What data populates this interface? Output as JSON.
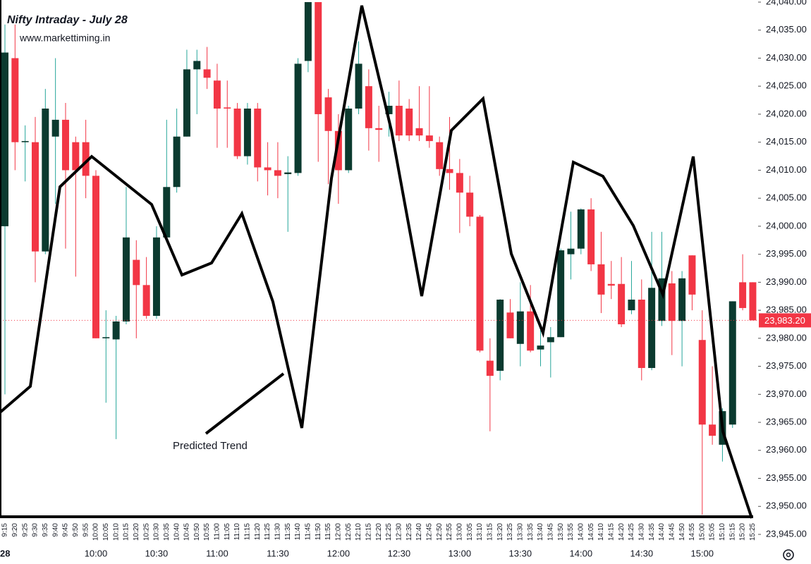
{
  "chart_data": {
    "type": "candlestick",
    "title": "Nifty Intraday - July 28",
    "subtitle": "www.markettiming.in",
    "annotation": "Predicted Trend",
    "date_label": "28",
    "categories": [
      "9:15",
      "9:20",
      "9:25",
      "9:30",
      "9:35",
      "9:40",
      "9:45",
      "9:50",
      "9:55",
      "10:00",
      "10:05",
      "10:10",
      "10:15",
      "10:20",
      "10:25",
      "10:30",
      "10:35",
      "10:40",
      "10:45",
      "10:50",
      "10:55",
      "11:00",
      "11:05",
      "11:10",
      "11:15",
      "11:20",
      "11:25",
      "11:30",
      "11:35",
      "11:40",
      "11:45",
      "11:50",
      "11:55",
      "12:00",
      "12:05",
      "12:10",
      "12:15",
      "12:20",
      "12:25",
      "12:30",
      "12:35",
      "12:40",
      "12:45",
      "12:50",
      "12:55",
      "13:00",
      "13:05",
      "13:10",
      "13:15",
      "13:20",
      "13:25",
      "13:30",
      "13:35",
      "13:40",
      "13:45",
      "13:50",
      "13:55",
      "14:00",
      "14:05",
      "14:10",
      "14:15",
      "14:20",
      "14:25",
      "14:30",
      "14:35",
      "14:40",
      "14:45",
      "14:50",
      "14:55",
      "15:00",
      "15:05",
      "15:10",
      "15:15",
      "15:20",
      "15:25"
    ],
    "major_labels": [
      "10:00",
      "10:30",
      "11:00",
      "11:30",
      "12:00",
      "12:30",
      "13:00",
      "13:30",
      "14:00",
      "14:30",
      "15:00"
    ],
    "open": [
      24000,
      24030,
      24015,
      24015,
      23995.5,
      24016,
      24019,
      24015,
      24015,
      24009,
      23980,
      23979.8,
      23983,
      23994,
      23989.5,
      23984,
      23998,
      24007,
      24016,
      24028,
      24028,
      24026,
      24021.2,
      24021,
      24012.5,
      24021,
      24010.5,
      24010,
      24009.3,
      24009.5,
      24029.5,
      24040,
      24023,
      24017,
      24010,
      24021,
      24025,
      24017.5,
      24020,
      24021.5,
      24021,
      24017.5,
      24016.2,
      24015,
      24010.2,
      24009.5,
      24006,
      24001.7,
      23976,
      23974.2,
      23984.6,
      23979,
      23984.8,
      23978,
      23979.3,
      23980.2,
      23995,
      23996,
      24003,
      23993.2,
      23989.7,
      23989.7,
      23985,
      23986.9,
      23974.7,
      23983.1,
      23989.8,
      23983.1,
      23994.8,
      23979.7,
      23964.6,
      23961,
      23964.6,
      23990,
      23990
    ],
    "high": [
      24036,
      24036,
      24018,
      24019.5,
      24024.5,
      24030,
      24022,
      24016,
      24019,
      24010,
      23985,
      23984,
      24007,
      23997.5,
      23994.5,
      24000,
      24019,
      24021,
      24031.5,
      24031.5,
      24032,
      24029,
      24026,
      24022,
      24022,
      24022,
      24015,
      24015,
      24012.5,
      24030,
      24040,
      24040,
      24024.5,
      24020,
      24021.5,
      24033,
      24028,
      24021.5,
      24024,
      24026,
      24022.7,
      24025,
      24025,
      24016,
      24019.5,
      24012,
      24009,
      24002,
      23980,
      23987,
      23987,
      23990,
      23989.5,
      23981.5,
      23982,
      23996,
      24002.6,
      24003.2,
      24005,
      23999,
      23993.8,
      23994.5,
      23993.8,
      23990.5,
      23999,
      23999,
      23992,
      23992,
      23994.8,
      23985,
      23975,
      23967.5,
      23986.6,
      23995,
      23990
    ],
    "low": [
      23970,
      24010,
      24008,
      23990,
      23995,
      24004,
      23996,
      23991,
      24005,
      23980,
      23968.5,
      23962,
      23982.5,
      23980,
      23983.5,
      23983.5,
      23998,
      24006,
      24016,
      24020,
      24024.5,
      24014,
      24014,
      24012,
      24011,
      24008,
      24005.5,
      24005,
      23999,
      24009,
      24027.5,
      24011.5,
      24007.5,
      24004,
      24009.5,
      24020,
      24013.5,
      24011.5,
      24016,
      24015.2,
      24015.2,
      24015.2,
      24014,
      24009,
      24006.5,
      23998.8,
      24000,
      23977.5,
      23963.4,
      23972.5,
      23980,
      23975,
      23977.5,
      23975,
      23973,
      23980.2,
      23990.5,
      23995,
      23992,
      23984.5,
      23987,
      23982,
      23984.3,
      23972.5,
      23974.3,
      23982.2,
      23977,
      23975,
      23985,
      23948.5,
      23961,
      23958,
      23964,
      23985,
      23983.2
    ],
    "close": [
      24031,
      24015,
      24015.2,
      23995.5,
      24021,
      24019,
      24010,
      24010,
      24009,
      23980,
      23980.2,
      23983,
      23998,
      23989.5,
      23984,
      23998,
      24007,
      24016,
      24028,
      24029.5,
      24026.5,
      24021,
      24021,
      24012.5,
      24021,
      24010.5,
      24010,
      24009,
      24009.6,
      24029,
      24040,
      24020,
      24017,
      24010,
      24021,
      24029,
      24017.5,
      24017.2,
      24021.5,
      24016.2,
      24016.2,
      24016.2,
      24015.2,
      24010.2,
      24009.5,
      24006,
      24001.7,
      23977.8,
      23973.3,
      23986.9,
      23980,
      23984.8,
      23977.8,
      23978.7,
      23980.2,
      23995.7,
      23996,
      24003,
      23993.2,
      23987.8,
      23989.4,
      23982.5,
      23986.9,
      23974.7,
      23989,
      23990.7,
      23983.1,
      23990.7,
      23987.8,
      23964.6,
      23962.6,
      23967,
      23986.6,
      23985.4,
      23983.2
    ],
    "up_color": "#0b3a2f",
    "down_color": "#f23645",
    "up_wick": "#26a69a",
    "last_price": {
      "value": 23983.2,
      "label": "23,983.20"
    },
    "ylim": [
      23945,
      24040
    ],
    "yticks": [
      {
        "value": 23945,
        "label": "23,945.00"
      },
      {
        "value": 23950,
        "label": "23,950.00"
      },
      {
        "value": 23955,
        "label": "23,955.00"
      },
      {
        "value": 23960,
        "label": "23,960.00"
      },
      {
        "value": 23965,
        "label": "23,965.00"
      },
      {
        "value": 23970,
        "label": "23,970.00"
      },
      {
        "value": 23975,
        "label": "23,975.00"
      },
      {
        "value": 23980,
        "label": "23,980.00"
      },
      {
        "value": 23985,
        "label": "23,985.00"
      },
      {
        "value": 23990,
        "label": "23,990.00"
      },
      {
        "value": 23995,
        "label": "23,995.00"
      },
      {
        "value": 24000,
        "label": "24,000.00"
      },
      {
        "value": 24005,
        "label": "24,005.00"
      },
      {
        "value": 24010,
        "label": "24,010.00"
      },
      {
        "value": 24015,
        "label": "24,015.00"
      },
      {
        "value": 24020,
        "label": "24,020.00"
      },
      {
        "value": 24025,
        "label": "24,025.00"
      },
      {
        "value": 24030,
        "label": "24,030.00"
      },
      {
        "value": 24035,
        "label": "24,035.00"
      },
      {
        "value": 24040,
        "label": "24,040.00"
      }
    ],
    "grid": false
  }
}
